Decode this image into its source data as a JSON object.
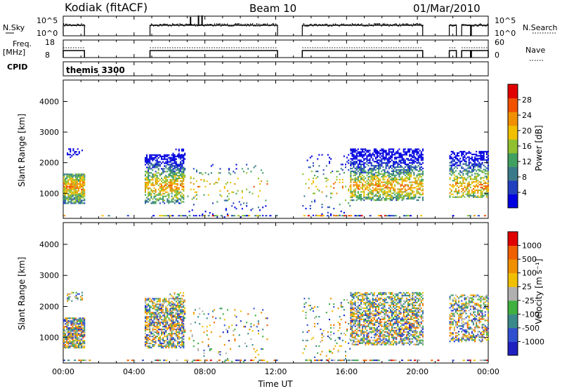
{
  "header": {
    "station": "Kodiak (fitACF)",
    "beam": "Beam 10",
    "date": "01/Mar/2010"
  },
  "strips": {
    "nsky_label": "N.Sky",
    "nsky_ticks": [
      "10^5",
      "10^0"
    ],
    "nsearch_label": "N.Search",
    "nsearch_ticks": [
      "10^5",
      "10^0"
    ],
    "freq_label": "Freq.",
    "freq_unit": "[MHz]",
    "freq_ticks": [
      "18",
      "8"
    ],
    "nave_label": "Nave",
    "nave_ticks": [
      "60",
      "0"
    ],
    "cpid_label": "CPID",
    "cpid_value": "themis 3300",
    "operating_intervals_ut_hours": [
      [
        0.0,
        1.2
      ],
      [
        4.9,
        12.1
      ],
      [
        13.5,
        20.3
      ],
      [
        21.8,
        22.2
      ],
      [
        22.5,
        23.0
      ],
      [
        23.05,
        24.0
      ]
    ]
  },
  "chart_data": [
    {
      "type": "scatter",
      "name": "power-panel",
      "ylabel": "Slant Range [km]",
      "yticks": [
        "4000",
        "3000",
        "2000",
        "1000"
      ],
      "ylim": [
        180,
        4700
      ],
      "xlim": [
        0,
        24
      ],
      "colorbar": {
        "label": "Power [dB]",
        "ticks": [
          "28",
          "24",
          "20",
          "16",
          "12",
          "8",
          "4"
        ],
        "colors": [
          "#0000e0",
          "#2040c0",
          "#3a7a8a",
          "#40a060",
          "#90c030",
          "#f0c000",
          "#f09000",
          "#f05000",
          "#e00000"
        ]
      }
    },
    {
      "type": "scatter",
      "name": "velocity-panel",
      "ylabel": "Slant Range [km]",
      "yticks": [
        "4000",
        "3000",
        "2000",
        "1000"
      ],
      "ylim": [
        180,
        4700
      ],
      "xlim": [
        0,
        24
      ],
      "colorbar": {
        "label": "Velocity [m s⁻¹]",
        "ticks": [
          "1000",
          "500",
          "100",
          "25",
          "-25",
          "-100",
          "-500",
          "-1000"
        ],
        "colors": [
          "#2020c0",
          "#3050d0",
          "#3a8a8a",
          "#40b040",
          "#b0b0b0",
          "#f0c000",
          "#f09000",
          "#f06000",
          "#e00000"
        ]
      }
    }
  ],
  "xaxis": {
    "ticks": [
      "00:00",
      "04:00",
      "08:00",
      "12:00",
      "16:00",
      "20:00",
      "00:00"
    ],
    "label": "Time UT"
  }
}
